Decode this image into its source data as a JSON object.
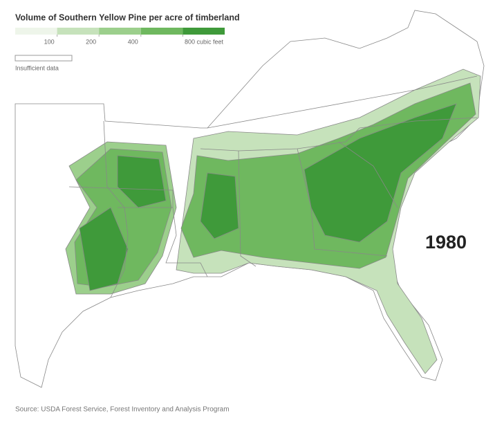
{
  "title": "Volume of Southern Yellow Pine per acre of timberland",
  "legend": {
    "colors": [
      "#eef5ea",
      "#c6e2bb",
      "#9ccf8c",
      "#6fb85f",
      "#3f9a3a"
    ],
    "ticks": [
      100,
      200,
      400,
      {
        "value": 800,
        "label": "800 cubic feet"
      }
    ],
    "insufficient_label": "Insufficient data"
  },
  "year_label": "1980",
  "source": "Source: USDA Forest Service, Forest Inventory and Analysis Program"
}
